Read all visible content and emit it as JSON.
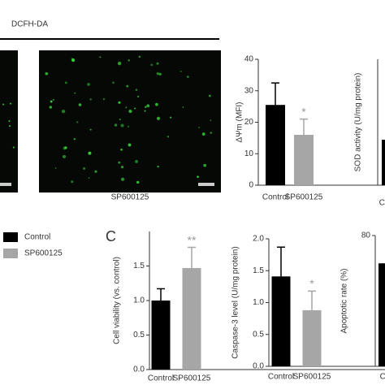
{
  "header": {
    "stain": "DCFH-DA",
    "image_label": "SP600125",
    "panel_label": "C"
  },
  "legend": [
    {
      "name": "Control",
      "color": "#000000"
    },
    {
      "name": "SP600125",
      "color": "#a6a6a6"
    }
  ],
  "chart_data": [
    {
      "type": "bar",
      "ylabel": "ΔΨm (MFI)",
      "categories": [
        "Control",
        "SP600125"
      ],
      "values": [
        25.5,
        16
      ],
      "errors": [
        7,
        5
      ],
      "colors": [
        "#000000",
        "#a6a6a6"
      ],
      "annotations": [
        null,
        "*"
      ],
      "ylim": [
        0,
        40
      ],
      "yticks": [
        0,
        10,
        20,
        30,
        40
      ]
    },
    {
      "type": "bar",
      "ylabel": "SOD activity (U/mg protein)",
      "categories": [
        "Co"
      ],
      "colors": [
        "#000000"
      ]
    },
    {
      "type": "bar",
      "ylabel": "Cell viability (vs. control)",
      "categories": [
        "Control",
        "SP600125"
      ],
      "values": [
        1.0,
        1.47
      ],
      "errors": [
        0.17,
        0.3
      ],
      "colors": [
        "#000000",
        "#a6a6a6"
      ],
      "annotations": [
        null,
        "**"
      ],
      "ylim": [
        0,
        2
      ],
      "yticks": [
        {
          "value": 0,
          "label": "0.0"
        },
        0.5,
        {
          "value": 1,
          "label": "1.0"
        },
        1.5
      ]
    },
    {
      "type": "bar",
      "ylabel": "Caspase-3 level (U/mg protein)",
      "categories": [
        "Control",
        "SP600125"
      ],
      "values": [
        1.41,
        0.88
      ],
      "errors": [
        0.46,
        0.3
      ],
      "colors": [
        "#000000",
        "#a6a6a6"
      ],
      "annotations": [
        null,
        "*"
      ],
      "ylim": [
        0,
        2
      ],
      "yticks": [
        {
          "value": 0,
          "label": "0.0"
        },
        0.5,
        {
          "value": 1,
          "label": "1.0"
        },
        1.5,
        {
          "value": 2,
          "label": "2.0"
        }
      ]
    },
    {
      "type": "bar",
      "ylabel": "Apoptotic rate (%)",
      "categories": [
        "Ca"
      ],
      "values": [
        63
      ],
      "colors": [
        "#000000"
      ],
      "ylim": [
        0,
        80
      ],
      "yticks": [
        80
      ]
    }
  ]
}
